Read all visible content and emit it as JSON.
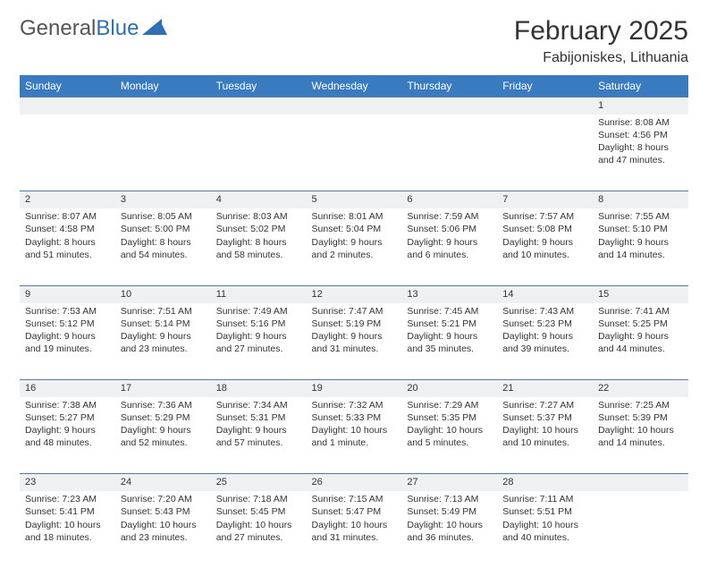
{
  "brand": {
    "part1": "General",
    "part2": "Blue"
  },
  "title": "February 2025",
  "location": "Fabijoniskes, Lithuania",
  "colors": {
    "header_bg": "#3a7bbf",
    "header_text": "#ffffff",
    "daynum_bg": "#eef0f1",
    "daynum_border": "#5a7a99",
    "text": "#333333",
    "brand_blue": "#2f6fb4"
  },
  "day_headers": [
    "Sunday",
    "Monday",
    "Tuesday",
    "Wednesday",
    "Thursday",
    "Friday",
    "Saturday"
  ],
  "weeks": [
    {
      "nums": [
        "",
        "",
        "",
        "",
        "",
        "",
        "1"
      ],
      "cells": [
        "",
        "",
        "",
        "",
        "",
        "",
        "Sunrise: 8:08 AM\nSunset: 4:56 PM\nDaylight: 8 hours and 47 minutes."
      ]
    },
    {
      "nums": [
        "2",
        "3",
        "4",
        "5",
        "6",
        "7",
        "8"
      ],
      "cells": [
        "Sunrise: 8:07 AM\nSunset: 4:58 PM\nDaylight: 8 hours and 51 minutes.",
        "Sunrise: 8:05 AM\nSunset: 5:00 PM\nDaylight: 8 hours and 54 minutes.",
        "Sunrise: 8:03 AM\nSunset: 5:02 PM\nDaylight: 8 hours and 58 minutes.",
        "Sunrise: 8:01 AM\nSunset: 5:04 PM\nDaylight: 9 hours and 2 minutes.",
        "Sunrise: 7:59 AM\nSunset: 5:06 PM\nDaylight: 9 hours and 6 minutes.",
        "Sunrise: 7:57 AM\nSunset: 5:08 PM\nDaylight: 9 hours and 10 minutes.",
        "Sunrise: 7:55 AM\nSunset: 5:10 PM\nDaylight: 9 hours and 14 minutes."
      ]
    },
    {
      "nums": [
        "9",
        "10",
        "11",
        "12",
        "13",
        "14",
        "15"
      ],
      "cells": [
        "Sunrise: 7:53 AM\nSunset: 5:12 PM\nDaylight: 9 hours and 19 minutes.",
        "Sunrise: 7:51 AM\nSunset: 5:14 PM\nDaylight: 9 hours and 23 minutes.",
        "Sunrise: 7:49 AM\nSunset: 5:16 PM\nDaylight: 9 hours and 27 minutes.",
        "Sunrise: 7:47 AM\nSunset: 5:19 PM\nDaylight: 9 hours and 31 minutes.",
        "Sunrise: 7:45 AM\nSunset: 5:21 PM\nDaylight: 9 hours and 35 minutes.",
        "Sunrise: 7:43 AM\nSunset: 5:23 PM\nDaylight: 9 hours and 39 minutes.",
        "Sunrise: 7:41 AM\nSunset: 5:25 PM\nDaylight: 9 hours and 44 minutes."
      ]
    },
    {
      "nums": [
        "16",
        "17",
        "18",
        "19",
        "20",
        "21",
        "22"
      ],
      "cells": [
        "Sunrise: 7:38 AM\nSunset: 5:27 PM\nDaylight: 9 hours and 48 minutes.",
        "Sunrise: 7:36 AM\nSunset: 5:29 PM\nDaylight: 9 hours and 52 minutes.",
        "Sunrise: 7:34 AM\nSunset: 5:31 PM\nDaylight: 9 hours and 57 minutes.",
        "Sunrise: 7:32 AM\nSunset: 5:33 PM\nDaylight: 10 hours and 1 minute.",
        "Sunrise: 7:29 AM\nSunset: 5:35 PM\nDaylight: 10 hours and 5 minutes.",
        "Sunrise: 7:27 AM\nSunset: 5:37 PM\nDaylight: 10 hours and 10 minutes.",
        "Sunrise: 7:25 AM\nSunset: 5:39 PM\nDaylight: 10 hours and 14 minutes."
      ]
    },
    {
      "nums": [
        "23",
        "24",
        "25",
        "26",
        "27",
        "28",
        ""
      ],
      "cells": [
        "Sunrise: 7:23 AM\nSunset: 5:41 PM\nDaylight: 10 hours and 18 minutes.",
        "Sunrise: 7:20 AM\nSunset: 5:43 PM\nDaylight: 10 hours and 23 minutes.",
        "Sunrise: 7:18 AM\nSunset: 5:45 PM\nDaylight: 10 hours and 27 minutes.",
        "Sunrise: 7:15 AM\nSunset: 5:47 PM\nDaylight: 10 hours and 31 minutes.",
        "Sunrise: 7:13 AM\nSunset: 5:49 PM\nDaylight: 10 hours and 36 minutes.",
        "Sunrise: 7:11 AM\nSunset: 5:51 PM\nDaylight: 10 hours and 40 minutes.",
        ""
      ]
    }
  ]
}
